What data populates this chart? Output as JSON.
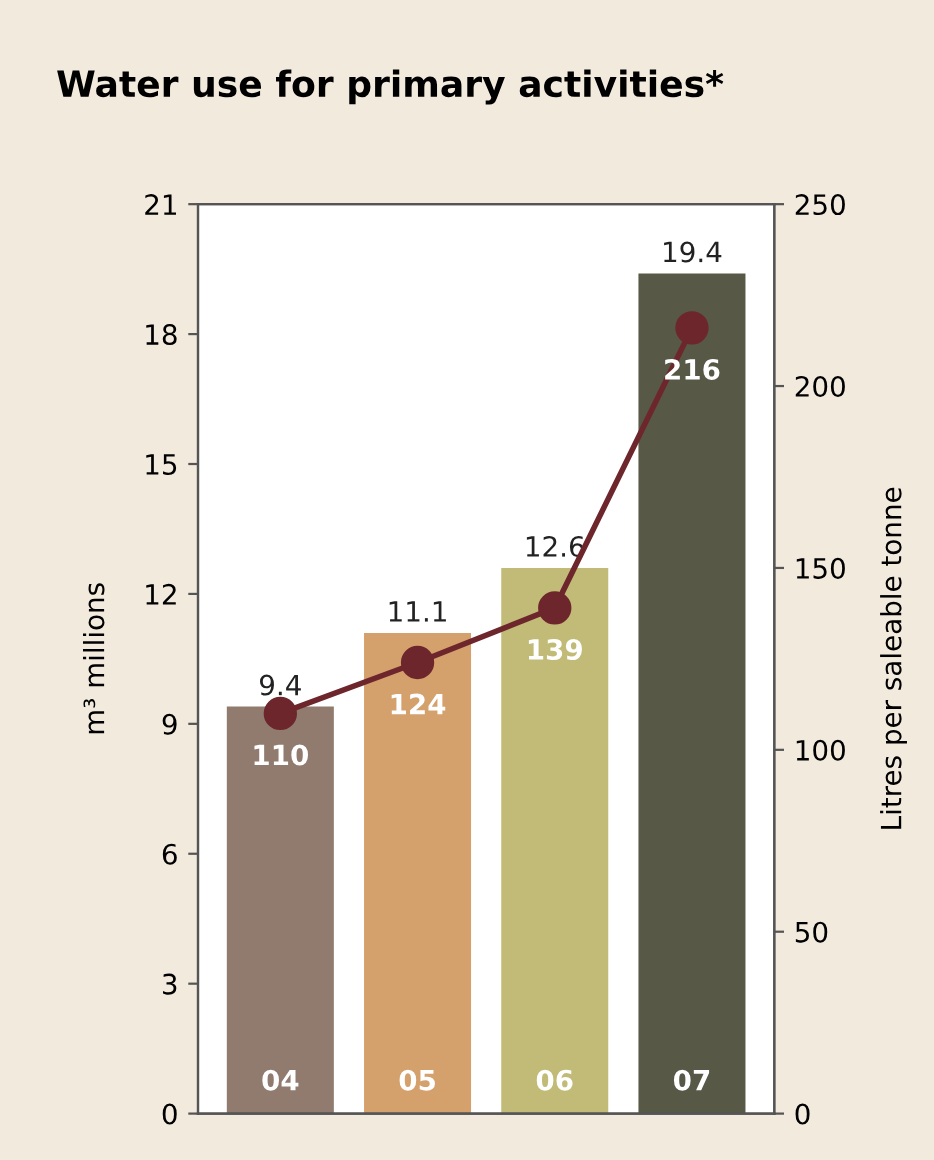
{
  "chart_data": {
    "type": "bar",
    "title": "Water use for primary activities*",
    "categories": [
      "04",
      "05",
      "06",
      "07"
    ],
    "series": [
      {
        "colors": [
          "#917b6e",
          "#d4a06c",
          "#c2bb77",
          "#575846"
        ],
        "values": [
          9.4,
          11.1,
          12.6,
          19.4
        ]
      },
      {
        "type": "line",
        "axis": "y2",
        "color": "#6e262d",
        "marker": "circle",
        "values": [
          110,
          124,
          139,
          216
        ]
      }
    ],
    "ylabel": "m³ millions",
    "y2label": "Litres per saleable tonne",
    "ylim": [
      0,
      21
    ],
    "yticks": [
      0,
      3,
      6,
      9,
      12,
      15,
      18,
      21
    ],
    "y2lim": [
      0,
      250
    ],
    "y2ticks": [
      0,
      50,
      100,
      150,
      200,
      250
    ],
    "data_labels": true,
    "grid": false,
    "legend": false
  }
}
